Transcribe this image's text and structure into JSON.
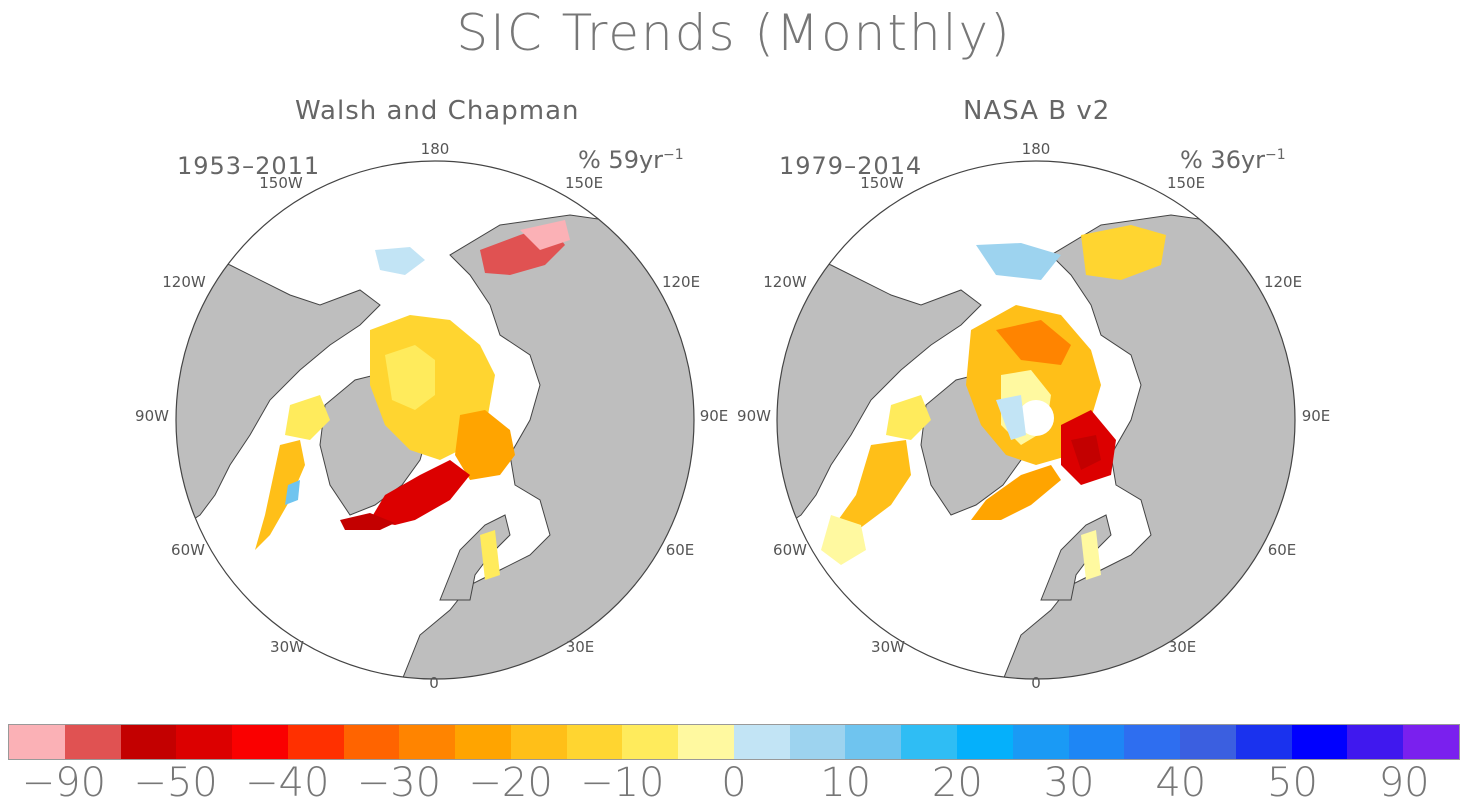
{
  "title": "SIC Trends (Monthly)",
  "panels": [
    {
      "title": "Walsh and Chapman",
      "period": "1953–2011",
      "units_prefix": "% 59yr",
      "units_sup": "−1",
      "lon_labels": {
        "l180": "180",
        "l150w": "150W",
        "l150e": "150E",
        "l120w": "120W",
        "l120e": "120E",
        "l90w": "90W",
        "l90e": "90E",
        "l60w": "60W",
        "l60e": "60E",
        "l30w": "30W",
        "l30e": "30E",
        "l0": "0"
      }
    },
    {
      "title": "NASA B v2",
      "period": "1979–2014",
      "units_prefix": "% 36yr",
      "units_sup": "−1",
      "lon_labels": {
        "l180": "180",
        "l150w": "150W",
        "l150e": "150E",
        "l120w": "120W",
        "l120e": "120E",
        "l90w": "90W",
        "l90e": "90E",
        "l60w": "60W",
        "l60e": "60E",
        "l30w": "30W",
        "l30e": "30E",
        "l0": "0"
      }
    }
  ],
  "colorbar": {
    "colors": [
      "#fbb1b6",
      "#e05252",
      "#c30000",
      "#dc0000",
      "#fa0000",
      "#ff3000",
      "#ff6400",
      "#ff8400",
      "#ffa400",
      "#ffbf18",
      "#ffd530",
      "#ffeb5c",
      "#fff9a0",
      "#c2e4f5",
      "#9dd3ef",
      "#6fc4ef",
      "#2fbdf4",
      "#05b0fb",
      "#1a9af5",
      "#1e86f5",
      "#2e6ef0",
      "#3b5fe0",
      "#1a32ee",
      "#0000ff",
      "#4018ee",
      "#7a20ee"
    ],
    "labels": [
      "−90",
      "−50",
      "−40",
      "−30",
      "−20",
      "−10",
      "0",
      "10",
      "20",
      "30",
      "40",
      "50",
      "90"
    ]
  },
  "colors": {
    "land": "#bebebe",
    "ocean": "#ffffff",
    "coast": "#555555"
  }
}
